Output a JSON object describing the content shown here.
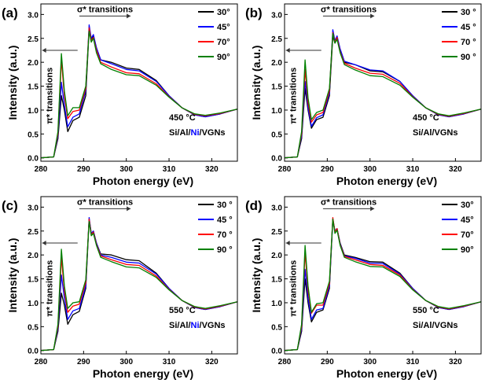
{
  "chart_data": [
    {
      "type": "line",
      "panel": "(a)",
      "xlabel": "Photon energy (eV)",
      "ylabel": "Intensity (a.u.)",
      "xlim": [
        280,
        326
      ],
      "ylim": [
        -0.07,
        3.22
      ],
      "xticks": [
        280,
        290,
        300,
        310,
        320
      ],
      "yticks": [
        "0.0",
        "0.5",
        "1.0",
        "1.5",
        "2.0",
        "2.5",
        "3.0"
      ],
      "sigma_label": "σ* transitions",
      "pi_label": "π* transitions",
      "temp": "450 °C",
      "sample": [
        "Si/Al/",
        "Ni",
        "/VGNs"
      ],
      "x": [
        280,
        283,
        284,
        284.8,
        285.5,
        286.3,
        287.5,
        289,
        290.5,
        291.3,
        291.8,
        292.3,
        293,
        294,
        296.5,
        300,
        303,
        307,
        310,
        313,
        316,
        318.5,
        322,
        326
      ],
      "series": [
        {
          "name": "30°",
          "color": "#000000",
          "values": [
            0,
            0.02,
            0.4,
            1.3,
            1.0,
            0.55,
            0.78,
            0.85,
            1.3,
            2.7,
            2.45,
            2.55,
            2.3,
            2.05,
            2.0,
            1.88,
            1.85,
            1.62,
            1.3,
            1.05,
            0.9,
            0.86,
            0.92,
            1.02
          ]
        },
        {
          "name": "45°",
          "color": "#0000ff",
          "values": [
            0,
            0.02,
            0.45,
            1.58,
            1.1,
            0.65,
            0.85,
            0.92,
            1.4,
            2.78,
            2.5,
            2.58,
            2.3,
            2.05,
            1.97,
            1.85,
            1.82,
            1.6,
            1.3,
            1.05,
            0.9,
            0.86,
            0.92,
            1.02
          ]
        },
        {
          "name": "70°",
          "color": "#ff0000",
          "values": [
            0,
            0.02,
            0.5,
            2.05,
            1.3,
            0.82,
            0.97,
            1.0,
            1.45,
            2.72,
            2.45,
            2.52,
            2.25,
            2.0,
            1.9,
            1.78,
            1.76,
            1.55,
            1.28,
            1.05,
            0.91,
            0.88,
            0.93,
            1.02
          ]
        },
        {
          "name": "90°",
          "color": "#008000",
          "values": [
            0,
            0.02,
            0.55,
            2.18,
            1.4,
            0.88,
            1.05,
            1.05,
            1.5,
            2.65,
            2.42,
            2.5,
            2.2,
            1.97,
            1.85,
            1.74,
            1.72,
            1.52,
            1.27,
            1.05,
            0.92,
            0.89,
            0.94,
            1.02
          ]
        }
      ]
    },
    {
      "type": "line",
      "panel": "(b)",
      "xlabel": "Photon energy (eV)",
      "ylabel": "Intensity (a.u.)",
      "xlim": [
        280,
        326
      ],
      "ylim": [
        -0.07,
        3.22
      ],
      "xticks": [
        280,
        290,
        300,
        310,
        320
      ],
      "yticks": [
        "0.0",
        "0.5",
        "1.0",
        "1.5",
        "2.0",
        "2.5",
        "3.0"
      ],
      "sigma_label": "σ* transitions",
      "pi_label": "π* transitions",
      "temp": "450 °C",
      "sample": [
        "Si/Al/VGNs"
      ],
      "x": [
        280,
        283,
        284,
        284.8,
        285.5,
        286.3,
        287.5,
        289,
        290.5,
        291.3,
        291.8,
        292.3,
        293,
        294,
        296.5,
        300,
        303,
        307,
        310,
        313,
        316,
        318.5,
        322,
        326
      ],
      "series": [
        {
          "name": "30 °",
          "color": "#000000",
          "values": [
            0,
            0.02,
            0.4,
            1.45,
            1.0,
            0.62,
            0.8,
            0.85,
            1.3,
            2.55,
            2.4,
            2.5,
            2.25,
            2.0,
            1.95,
            1.82,
            1.8,
            1.6,
            1.3,
            1.05,
            0.9,
            0.86,
            0.92,
            1.02
          ]
        },
        {
          "name": "45 °",
          "color": "#0000ff",
          "values": [
            0,
            0.02,
            0.45,
            1.6,
            1.05,
            0.66,
            0.84,
            0.9,
            1.35,
            2.68,
            2.45,
            2.55,
            2.28,
            2.02,
            1.95,
            1.84,
            1.82,
            1.6,
            1.3,
            1.05,
            0.9,
            0.86,
            0.92,
            1.02
          ]
        },
        {
          "name": "70 °",
          "color": "#ff0000",
          "values": [
            0,
            0.02,
            0.5,
            1.85,
            1.15,
            0.75,
            0.9,
            0.95,
            1.4,
            2.62,
            2.42,
            2.52,
            2.22,
            1.98,
            1.88,
            1.77,
            1.75,
            1.56,
            1.28,
            1.05,
            0.91,
            0.87,
            0.93,
            1.02
          ]
        },
        {
          "name": "90 °",
          "color": "#008000",
          "values": [
            0,
            0.02,
            0.55,
            2.05,
            1.25,
            0.8,
            0.95,
            1.0,
            1.45,
            2.6,
            2.4,
            2.48,
            2.2,
            1.95,
            1.84,
            1.72,
            1.7,
            1.52,
            1.27,
            1.05,
            0.92,
            0.88,
            0.94,
            1.02
          ]
        }
      ]
    },
    {
      "type": "line",
      "panel": "(c)",
      "xlabel": "Photon energy (eV)",
      "ylabel": "Intensity (a.u.)",
      "xlim": [
        280,
        326
      ],
      "ylim": [
        -0.07,
        3.22
      ],
      "xticks": [
        280,
        290,
        300,
        310,
        320
      ],
      "yticks": [
        "0.0",
        "0.5",
        "1.0",
        "1.5",
        "2.0",
        "2.5",
        "3.0"
      ],
      "sigma_label": "σ* transitions",
      "pi_label": "π* transitions",
      "temp": "550 °C",
      "sample": [
        "Si/Al/",
        "Ni",
        "/VGNs"
      ],
      "x": [
        280,
        283,
        284,
        284.8,
        285.5,
        286.3,
        287.5,
        289,
        290.5,
        291.3,
        291.8,
        292.3,
        293,
        294,
        296.5,
        300,
        303,
        307,
        310,
        313,
        316,
        318.5,
        322,
        326
      ],
      "series": [
        {
          "name": "30 °",
          "color": "#000000",
          "values": [
            0,
            0.02,
            0.4,
            1.2,
            0.95,
            0.55,
            0.75,
            0.82,
            1.3,
            2.75,
            2.45,
            2.5,
            2.25,
            2.02,
            2.0,
            1.9,
            1.88,
            1.62,
            1.3,
            1.05,
            0.9,
            0.86,
            0.92,
            1.02
          ]
        },
        {
          "name": "45 °",
          "color": "#0000ff",
          "values": [
            0,
            0.02,
            0.45,
            1.58,
            1.1,
            0.65,
            0.83,
            0.88,
            1.35,
            2.78,
            2.45,
            2.5,
            2.25,
            2.0,
            1.95,
            1.85,
            1.83,
            1.6,
            1.3,
            1.05,
            0.9,
            0.86,
            0.92,
            1.02
          ]
        },
        {
          "name": "70 °",
          "color": "#ff0000",
          "values": [
            0,
            0.02,
            0.5,
            1.95,
            1.25,
            0.8,
            0.93,
            0.97,
            1.42,
            2.75,
            2.42,
            2.48,
            2.22,
            1.98,
            1.9,
            1.8,
            1.78,
            1.56,
            1.28,
            1.05,
            0.91,
            0.87,
            0.93,
            1.02
          ]
        },
        {
          "name": "90 °",
          "color": "#008000",
          "values": [
            0,
            0.02,
            0.55,
            2.12,
            1.35,
            0.88,
            1.0,
            1.02,
            1.48,
            2.7,
            2.4,
            2.45,
            2.2,
            1.95,
            1.86,
            1.75,
            1.73,
            1.53,
            1.27,
            1.05,
            0.92,
            0.88,
            0.94,
            1.02
          ]
        }
      ]
    },
    {
      "type": "line",
      "panel": "(d)",
      "xlabel": "Photon energy (eV)",
      "ylabel": "Intensity (a.u.)",
      "xlim": [
        280,
        326
      ],
      "ylim": [
        -0.07,
        3.22
      ],
      "xticks": [
        280,
        290,
        300,
        310,
        320
      ],
      "yticks": [
        "0.0",
        "0.5",
        "1.0",
        "1.5",
        "2.0",
        "2.5",
        "3.0"
      ],
      "sigma_label": "σ* transitions",
      "pi_label": "π* transitions",
      "temp": "550 °C",
      "sample": [
        "Si/Al/VGNs"
      ],
      "x": [
        280,
        283,
        284,
        284.8,
        285.5,
        286.3,
        287.5,
        289,
        290.5,
        291.3,
        291.8,
        292.3,
        293,
        294,
        296.5,
        300,
        303,
        307,
        310,
        313,
        316,
        318.5,
        322,
        326
      ],
      "series": [
        {
          "name": "30°",
          "color": "#000000",
          "values": [
            0,
            0.02,
            0.4,
            1.5,
            1.0,
            0.6,
            0.8,
            0.85,
            1.3,
            2.75,
            2.5,
            2.55,
            2.25,
            2.0,
            1.95,
            1.86,
            1.85,
            1.62,
            1.3,
            1.05,
            0.9,
            0.86,
            0.92,
            1.02
          ]
        },
        {
          "name": "45°",
          "color": "#0000ff",
          "values": [
            0,
            0.02,
            0.45,
            1.7,
            1.1,
            0.65,
            0.85,
            0.88,
            1.35,
            2.75,
            2.5,
            2.55,
            2.24,
            1.98,
            1.93,
            1.83,
            1.82,
            1.6,
            1.3,
            1.05,
            0.9,
            0.86,
            0.92,
            1.02
          ]
        },
        {
          "name": "70°",
          "color": "#ff0000",
          "values": [
            0,
            0.02,
            0.5,
            2.05,
            1.25,
            0.78,
            0.95,
            0.95,
            1.4,
            2.78,
            2.48,
            2.55,
            2.22,
            1.97,
            1.9,
            1.8,
            1.78,
            1.58,
            1.28,
            1.05,
            0.91,
            0.87,
            0.93,
            1.02
          ]
        },
        {
          "name": "90°",
          "color": "#008000",
          "values": [
            0,
            0.02,
            0.55,
            2.2,
            1.35,
            0.8,
            0.98,
            1.0,
            1.45,
            2.75,
            2.45,
            2.52,
            2.2,
            1.95,
            1.86,
            1.76,
            1.75,
            1.55,
            1.27,
            1.05,
            0.92,
            0.88,
            0.94,
            1.02
          ]
        }
      ]
    }
  ]
}
